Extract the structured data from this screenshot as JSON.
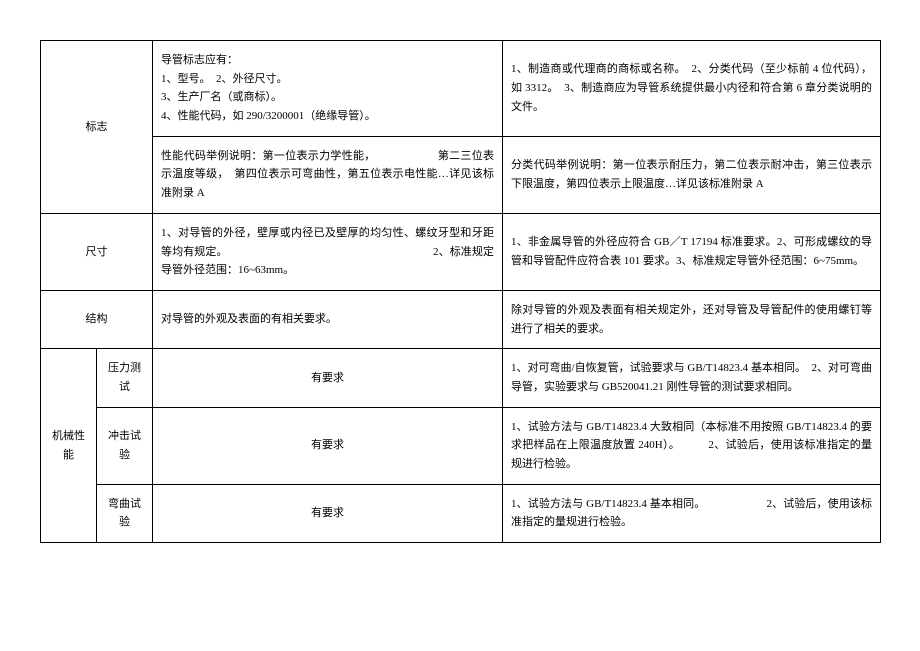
{
  "rows": {
    "mark": {
      "label": "标志",
      "r1_left": "导管标志应有：\n1、型号。　2、外径尺寸。\n3、生产厂名（或商标）。\n4、性能代码，如 290/3200001（绝缘导管）。",
      "r1_right": "1、制造商或代理商的商标或名称。　2、分类代码（至少标前 4 位代码），如 3312。　3、制造商应为导管系统提供最小内径和符合第 6 章分类说明的文件。",
      "r2_left": "性能代码举例说明：第一位表示力学性能，　　　　　　第二三位表示温度等级，　第四位表示可弯曲性，第五位表示电性能…详见该标准附录 A",
      "r2_right": "分类代码举例说明：第一位表示耐压力，第二位表示耐冲击，第三位表示下限温度，第四位表示上限温度…详见该标准附录 A"
    },
    "size": {
      "label": "尺寸",
      "left": "1、对导管的外径，壁厚或内径已及壁厚的均匀性、螺纹牙型和牙距等均有规定。　　　　　　　　　　　　　　　　　　　2、标准规定导管外径范围：16~63mm。",
      "right": "1、非金属导管的外径应符合 GB／T 17194 标准要求。2、可形成螺纹的导管和导管配件应符合表 101 要求。3、标准规定导管外径范围：6~75mm。"
    },
    "struct": {
      "label": "结构",
      "left": "对导管的外观及表面的有相关要求。",
      "right": "除对导管的外观及表面有相关规定外，还对导管及导管配件的使用螺钉等进行了相关的要求。"
    },
    "mech": {
      "label": "机械性能",
      "pressure": {
        "label": "压力测试",
        "left": "有要求",
        "right": "1、对可弯曲/自恢复管，试验要求与 GB/T14823.4 基本相同。　2、对可弯曲导管，实验要求与 GB520041.21 刚性导管的测试要求相同。"
      },
      "impact": {
        "label": "冲击试验",
        "left": "有要求",
        "right": "1、试验方法与 GB/T14823.4 大致相同（本标准不用按照 GB/T14823.4 的要求把样品在上限温度放置 240H）。　　　2、试验后，使用该标准指定的量规进行检验。"
      },
      "bend": {
        "label": "弯曲试验",
        "left": "有要求",
        "right": "1、试验方法与 GB/T14823.4 基本相同。　　　　　　2、试验后，使用该标准指定的量规进行检验。"
      }
    }
  }
}
